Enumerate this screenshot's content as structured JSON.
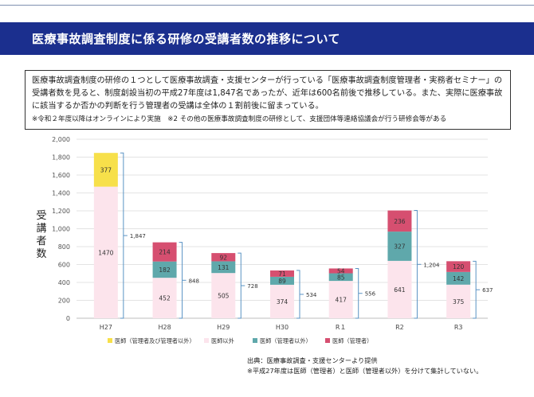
{
  "title": "医療事故調査制度に係る研修の受講者数の推移について",
  "description": {
    "text": "医療事故調査制度の研修の１つとして医療事故調査・支援センターが行っている「医療事故調査制度管理者・実務者セミナー」の受講者数を見ると、制度創設当初の平成27年度は1,847名であったが、近年は600名前後で推移している。また、実際に医療事故に該当するか否かの判断を行う管理者の受講は全体の１割前後に留まっている。",
    "note": "※令和２年度以降はオンラインにより実施　※2 その他の医療事故調査制度の研修として、支援団体等連絡協議会が行う研修会等がある"
  },
  "chart_data": {
    "type": "bar",
    "stacked": true,
    "categories": [
      "H27",
      "H28",
      "H29",
      "H30",
      "R１",
      "R2",
      "R3"
    ],
    "series": [
      {
        "name": "医師以外",
        "color": "#fce4ec",
        "values": [
          1470,
          452,
          505,
          374,
          417,
          641,
          375
        ]
      },
      {
        "name": "医師（管理者以外）",
        "color": "#5fa8ab",
        "values": [
          null,
          182,
          131,
          89,
          85,
          327,
          142
        ]
      },
      {
        "name": "医師（管理者）",
        "color": "#d64f70",
        "values": [
          null,
          214,
          92,
          71,
          54,
          236,
          120
        ]
      },
      {
        "name": "医師（管理者及び管理者以外）",
        "color": "#f7e04a",
        "values": [
          377,
          null,
          null,
          null,
          null,
          null,
          null
        ]
      }
    ],
    "totals": [
      "1,847",
      "848",
      "728",
      "534",
      "556",
      "1,204",
      "637"
    ],
    "ylabel": "受講者数",
    "ylim": [
      0,
      2000
    ],
    "yticks": [
      "0",
      "200",
      "400",
      "600",
      "800",
      "1,000",
      "1,200",
      "1,400",
      "1,600",
      "1,800",
      "2,000"
    ],
    "grid": true,
    "legend_position": "bottom",
    "legend_order": [
      3,
      0,
      1,
      2
    ]
  },
  "source": {
    "line1": "出典：医療事故調査・支援センターより提供",
    "line2": "※平成27年度は医師（管理者）と医師（管理者以外）を分けて集計していない。"
  }
}
